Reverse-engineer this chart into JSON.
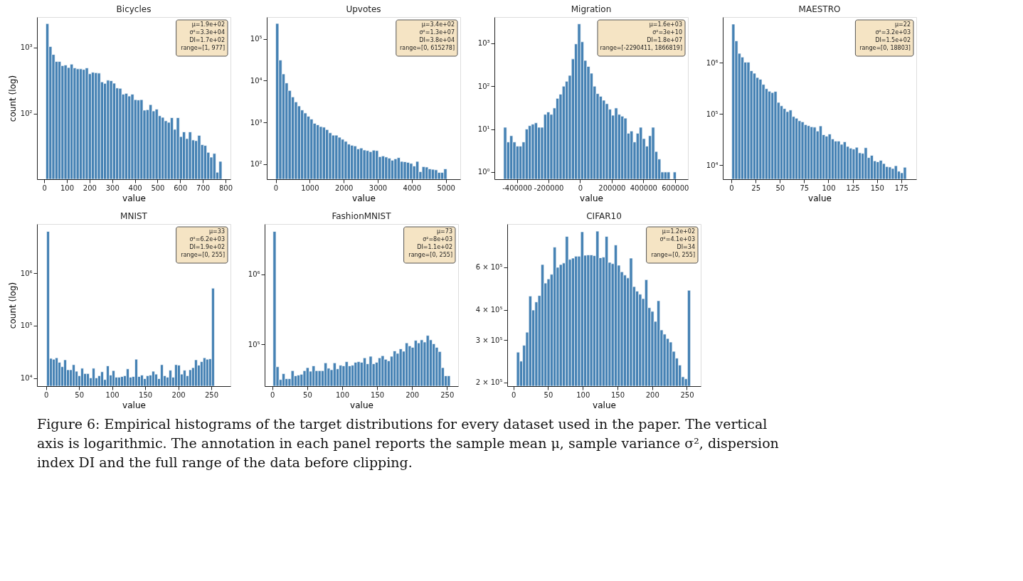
{
  "chart_data": [
    {
      "type": "histogram",
      "title": "Bicycles",
      "xlabel": "value",
      "ylabel": "count (log)",
      "color": "#4682b4",
      "log": true,
      "bins": [
        7,
        20.4,
        33.8,
        47.2,
        60.6,
        74,
        87.4,
        100.8,
        114.2,
        127.6,
        141,
        154.4,
        167.8,
        181.2,
        194.6,
        208,
        221.4,
        234.8,
        248.2,
        261.6,
        275,
        288.4,
        301.8,
        315.2,
        328.6,
        342,
        355.4,
        368.8,
        382.2,
        395.6,
        409,
        422.4,
        435.8,
        449.2,
        462.6,
        476,
        489.4,
        502.8,
        516.2,
        529.6,
        543,
        556.4,
        569.8,
        583.2,
        596.6,
        610,
        623.4,
        636.8,
        650.2,
        663.6,
        677,
        690.4,
        703.8,
        717.2,
        730.6,
        744,
        757.4,
        770.8,
        784.2
      ],
      "values": [
        2310,
        1038,
        787,
        615,
        615,
        533,
        546,
        499,
        562,
        492,
        477,
        477,
        467,
        492,
        402,
        423,
        417,
        411,
        303,
        287,
        321,
        316,
        289,
        245,
        242,
        197,
        203,
        185,
        197,
        163,
        161,
        163,
        113,
        115,
        137,
        110,
        117,
        93,
        88,
        78,
        74,
        87,
        58,
        87,
        45,
        53,
        42,
        53,
        40,
        39,
        47,
        34,
        33,
        26,
        22,
        25,
        13,
        19
      ],
      "xlim": [
        -32,
        822
      ],
      "xticks": [
        0,
        100,
        200,
        300,
        400,
        500,
        600,
        700,
        800
      ],
      "ylim": [
        10.2,
        2900
      ],
      "yticks": [
        {
          "value": 100,
          "label": "10²"
        },
        {
          "value": 1000,
          "label": "10³"
        }
      ],
      "annotations": [
        "μ=1.9e+02",
        "σ²=3.3e+04",
        "DI=1.7e+02",
        "range=[1, 977]"
      ]
    },
    {
      "type": "histogram",
      "title": "Upvotes",
      "xlabel": "value",
      "color": "#4682b4",
      "log": true,
      "bins": [
        0,
        91.5,
        183,
        274.5,
        366,
        457.5,
        549,
        640.5,
        732,
        823.5,
        915,
        1006.5,
        1098,
        1189.5,
        1281,
        1372.5,
        1464,
        1555.5,
        1647,
        1738.5,
        1830,
        1921.5,
        2013,
        2104.5,
        2196,
        2287.5,
        2379,
        2470.5,
        2562,
        2653.5,
        2745,
        2836.5,
        2928,
        3019.5,
        3111,
        3202.5,
        3294,
        3385.5,
        3477,
        3568.5,
        3660,
        3751.5,
        3843,
        3934.5,
        4026,
        4117.5,
        4209,
        4300.5,
        4392,
        4483.5,
        4575,
        4666.5,
        4758,
        4849.5,
        4941,
        5032.5
      ],
      "values": [
        235000,
        31300,
        14500,
        8810,
        5820,
        4080,
        3100,
        2480,
        1980,
        1680,
        1400,
        1200,
        950,
        873,
        794,
        767,
        673,
        564,
        494,
        494,
        440,
        394,
        351,
        301,
        283,
        273,
        232,
        243,
        218,
        211,
        199,
        216,
        211,
        151,
        157,
        148,
        139,
        124,
        134,
        143,
        116,
        114,
        110,
        104,
        90,
        116,
        66,
        87,
        85,
        77,
        75,
        73,
        63,
        63,
        77
      ],
      "xlim": [
        -262,
        5426
      ],
      "xticks": [
        0,
        1000,
        2000,
        3000,
        4000,
        5000
      ],
      "ylim": [
        43.5,
        335000
      ],
      "yticks": [
        {
          "value": 100,
          "label": "10²"
        },
        {
          "value": 1000,
          "label": "10³"
        },
        {
          "value": 10000,
          "label": "10⁴"
        },
        {
          "value": 100000,
          "label": "10⁵"
        }
      ],
      "annotations": [
        "μ=3.4e+02",
        "σ²=1.3e+07",
        "DI=3.8e+04",
        "range=[0, 615278]"
      ]
    },
    {
      "type": "histogram",
      "title": "Migration",
      "xlabel": "value",
      "color": "#4682b4",
      "log": true,
      "bins": [
        -484000,
        -464500,
        -445000,
        -425500,
        -406000,
        -386500,
        -367000,
        -347500,
        -328000,
        -308500,
        -289000,
        -269500,
        -250000,
        -230500,
        -211000,
        -191500,
        -172000,
        -152500,
        -133000,
        -113500,
        -94000,
        -74500,
        -55000,
        -35500,
        -16000,
        3500,
        23000,
        42500,
        62000,
        81500,
        101000,
        120500,
        140000,
        159500,
        179000,
        198500,
        218000,
        237500,
        257000,
        276500,
        296000,
        315500,
        335000,
        354500,
        374000,
        393500,
        413000,
        432500,
        452000,
        471500,
        491000,
        510500,
        530000,
        549500,
        569000,
        588500,
        608000
      ],
      "values": [
        11,
        5,
        7,
        5,
        4,
        4,
        5,
        10,
        12,
        13,
        14,
        11,
        11,
        22,
        25,
        22,
        31,
        52,
        65,
        100,
        130,
        178,
        431,
        966,
        2820,
        1080,
        398,
        288,
        200,
        100,
        67,
        58,
        47,
        39,
        29,
        21,
        31,
        22,
        20,
        18,
        8,
        9,
        5,
        8,
        11,
        6,
        4,
        7,
        11,
        3,
        2,
        1,
        1,
        1,
        null,
        1
      ],
      "xlim": [
        -542000,
        682000
      ],
      "xticks": [
        -400000,
        -200000,
        0,
        200000,
        400000,
        600000
      ],
      "ylim": [
        0.68,
        4070
      ],
      "yticks": [
        {
          "value": 1,
          "label": "10⁰"
        },
        {
          "value": 10,
          "label": "10¹"
        },
        {
          "value": 100,
          "label": "10²"
        },
        {
          "value": 1000,
          "label": "10³"
        }
      ],
      "annotations": [
        "μ=1.6e+03",
        "σ²=3e+10",
        "DI=1.8e+07",
        "range=[-2290411, 1866819]"
      ]
    },
    {
      "type": "histogram",
      "title": "MAESTRO",
      "xlabel": "value",
      "color": "#4682b4",
      "log": true,
      "bins": [
        0.5,
        3.6,
        6.7,
        9.8,
        12.9,
        16,
        19.1,
        22.2,
        25.3,
        28.4,
        31.5,
        34.6,
        37.7,
        40.8,
        43.9,
        47,
        50.1,
        53.2,
        56.3,
        59.4,
        62.5,
        65.6,
        68.7,
        71.8,
        74.9,
        78,
        81.1,
        84.2,
        87.3,
        90.4,
        93.5,
        96.6,
        99.7,
        102.8,
        105.9,
        109,
        112.1,
        115.2,
        118.3,
        121.4,
        124.5,
        127.6,
        130.7,
        133.8,
        136.9,
        140,
        143.1,
        146.2,
        149.3,
        152.4,
        155.5,
        158.6,
        161.7,
        164.8,
        167.9,
        171,
        174.1,
        177.2,
        180.3
      ],
      "values": [
        5620000,
        2640000,
        1510000,
        1280000,
        1020000,
        1020000,
        695000,
        619000,
        511000,
        473000,
        376000,
        310000,
        277000,
        261000,
        274000,
        168000,
        144000,
        127000,
        111000,
        119000,
        89100,
        82600,
        73600,
        70200,
        61900,
        59000,
        56200,
        55200,
        46400,
        58400,
        39400,
        36900,
        40600,
        32600,
        29600,
        29600,
        25600,
        28700,
        23300,
        21600,
        20700,
        22400,
        17500,
        17100,
        22000,
        14100,
        15600,
        12200,
        11700,
        12500,
        10800,
        9440,
        9260,
        8660,
        9810,
        7650,
        7140,
        9170
      ],
      "xlim": [
        -8.8,
        190.5
      ],
      "xticks": [
        0,
        25,
        50,
        75,
        100,
        125,
        150,
        175
      ],
      "ylim": [
        5360,
        7700000
      ],
      "yticks": [
        {
          "value": 10000,
          "label": "10⁴"
        },
        {
          "value": 100000,
          "label": "10⁵"
        },
        {
          "value": 1000000,
          "label": "10⁶"
        }
      ],
      "annotations": [
        "μ=22",
        "σ²=3.2e+03",
        "DI=1.5e+02",
        "range=[0, 18803]"
      ]
    },
    {
      "type": "histogram",
      "title": "MNIST",
      "xlabel": "value",
      "ylabel": "count (log)",
      "color": "#4682b4",
      "log": true,
      "bins": [
        1,
        5.3,
        9.6,
        13.9,
        18.2,
        22.5,
        26.8,
        31.1,
        35.4,
        39.7,
        44,
        48.3,
        52.6,
        56.9,
        61.2,
        65.5,
        69.8,
        74.1,
        78.4,
        82.7,
        87,
        91.3,
        95.6,
        99.9,
        104.2,
        108.5,
        112.8,
        117.1,
        121.4,
        125.7,
        130,
        134.3,
        138.6,
        142.9,
        147.2,
        151.5,
        155.8,
        160.1,
        164.4,
        168.7,
        173,
        177.3,
        181.6,
        185.9,
        190.2,
        194.5,
        198.8,
        203.1,
        207.4,
        211.7,
        216,
        220.3,
        224.6,
        228.9,
        233.2,
        237.5,
        241.8,
        246.1,
        250.4,
        254.7
      ],
      "values": [
        6280000,
        23800,
        22900,
        24400,
        20000,
        16500,
        22300,
        14400,
        14400,
        18000,
        13500,
        11100,
        15400,
        12200,
        12200,
        10100,
        15400,
        10100,
        11100,
        13200,
        9380,
        17100,
        11400,
        13900,
        10400,
        10400,
        10700,
        11100,
        15000,
        10400,
        10700,
        22900,
        10700,
        11400,
        9750,
        11100,
        11400,
        13500,
        11900,
        9750,
        18000,
        11100,
        10400,
        14100,
        10400,
        18000,
        17600,
        11900,
        14100,
        11100,
        14400,
        15800,
        22300,
        17600,
        20600,
        24400,
        22900,
        23300,
        519000
      ],
      "xlim": [
        -13.6,
        279
      ],
      "xticks": [
        0,
        50,
        100,
        150,
        200,
        250
      ],
      "ylim": [
        7020,
        8700000
      ],
      "yticks": [
        {
          "value": 10000,
          "label": "10⁴"
        },
        {
          "value": 100000,
          "label": "10⁵"
        },
        {
          "value": 1000000,
          "label": "10⁶"
        }
      ],
      "annotations": [
        "μ=33",
        "σ²=6.2e+03",
        "DI=1.9e+02",
        "range=[0, 255]"
      ]
    },
    {
      "type": "histogram",
      "title": "FashionMNIST",
      "xlabel": "value",
      "color": "#4682b4",
      "log": true,
      "bins": [
        1,
        5.3,
        9.6,
        13.9,
        18.2,
        22.5,
        26.8,
        31.1,
        35.4,
        39.7,
        44,
        48.3,
        52.6,
        56.9,
        61.2,
        65.5,
        69.8,
        74.1,
        78.4,
        82.7,
        87,
        91.3,
        95.6,
        99.9,
        104.2,
        108.5,
        112.8,
        117.1,
        121.4,
        125.7,
        130,
        134.3,
        138.6,
        142.9,
        147.2,
        151.5,
        155.8,
        160.1,
        164.4,
        168.7,
        173,
        177.3,
        181.6,
        185.9,
        190.2,
        194.5,
        198.8,
        203.1,
        207.4,
        211.7,
        216,
        220.3,
        224.6,
        228.9,
        233.2,
        237.5,
        241.8,
        246.1,
        250.4,
        254.7
      ],
      "values": [
        4060000,
        48000,
        31500,
        38300,
        32400,
        32400,
        42200,
        35700,
        36500,
        37500,
        42200,
        46600,
        41400,
        49400,
        42200,
        42200,
        42200,
        54500,
        45700,
        43500,
        54500,
        44800,
        50400,
        49400,
        56700,
        49400,
        50400,
        55500,
        56700,
        55500,
        64300,
        52900,
        67600,
        52900,
        55500,
        64300,
        68900,
        61300,
        58300,
        67600,
        80600,
        74500,
        86300,
        79800,
        105000,
        95200,
        90700,
        114000,
        105000,
        116000,
        108000,
        134000,
        116000,
        102000,
        90700,
        79000,
        46600,
        35700,
        35700
      ],
      "xlim": [
        -11,
        266
      ],
      "xticks": [
        0,
        50,
        100,
        150,
        200,
        250
      ],
      "ylim": [
        25400,
        5190000
      ],
      "yticks": [
        {
          "value": 100000,
          "label": "10⁵"
        },
        {
          "value": 1000000,
          "label": "10⁶"
        }
      ],
      "annotations": [
        "μ=73",
        "σ²=8e+03",
        "DI=1.1e+02",
        "range=[0, 255]"
      ]
    },
    {
      "type": "histogram",
      "title": "CIFAR10",
      "xlabel": "value",
      "color": "#4682b4",
      "log": true,
      "bins": [
        4.5,
        8.9,
        13.3,
        17.7,
        22.1,
        26.5,
        30.9,
        35.3,
        39.7,
        44.1,
        48.5,
        52.9,
        57.3,
        61.7,
        66.1,
        70.5,
        74.9,
        79.3,
        83.7,
        88.1,
        92.5,
        96.9,
        101.3,
        105.7,
        110.1,
        114.5,
        118.9,
        123.3,
        127.7,
        132.1,
        136.5,
        140.9,
        145.3,
        149.7,
        154.1,
        158.5,
        162.9,
        167.3,
        171.7,
        176.1,
        180.5,
        184.9,
        189.3,
        193.7,
        198.1,
        202.5,
        206.9,
        211.3,
        215.7,
        220.1,
        224.5,
        228.9,
        233.3,
        237.7,
        242.1,
        246.5,
        250.9,
        255.3
      ],
      "values": [
        267000,
        245000,
        285000,
        323000,
        456000,
        399000,
        431000,
        458000,
        616000,
        516000,
        537000,
        561000,
        727000,
        600000,
        616000,
        625000,
        805000,
        647000,
        655000,
        667000,
        667000,
        842000,
        673000,
        675000,
        675000,
        671000,
        847000,
        657000,
        661000,
        805000,
        629000,
        621000,
        742000,
        612000,
        575000,
        557000,
        542000,
        655000,
        499000,
        478000,
        464000,
        445000,
        533000,
        408000,
        394000,
        358000,
        436000,
        330000,
        317000,
        304000,
        294000,
        269000,
        252000,
        236000,
        211000,
        207000,
        482000
      ],
      "xlim": [
        -8.9,
        270
      ],
      "xticks": [
        0,
        50,
        100,
        150,
        200,
        250
      ],
      "ylim": [
        193000,
        907000
      ],
      "yticks": [
        {
          "value": 200000,
          "label": "2 × 10⁵"
        },
        {
          "value": 300000,
          "label": "3 × 10⁵"
        },
        {
          "value": 400000,
          "label": "4 × 10⁵"
        },
        {
          "value": 600000,
          "label": "6 × 10⁵"
        }
      ],
      "annotations": [
        "μ=1.2e+02",
        "σ²=4.1e+03",
        "DI=34",
        "range=[0, 255]"
      ]
    },
    {
      "type": "other",
      "annotations": [
        "Figure 6: Empirical histograms of the target distributions for every dataset used in the paper. The vertical axis is logarithmic. The annotation in each panel reports the sample mean μ, sample variance σ², dispersion index DI and the full range of the data before clipping."
      ]
    }
  ]
}
